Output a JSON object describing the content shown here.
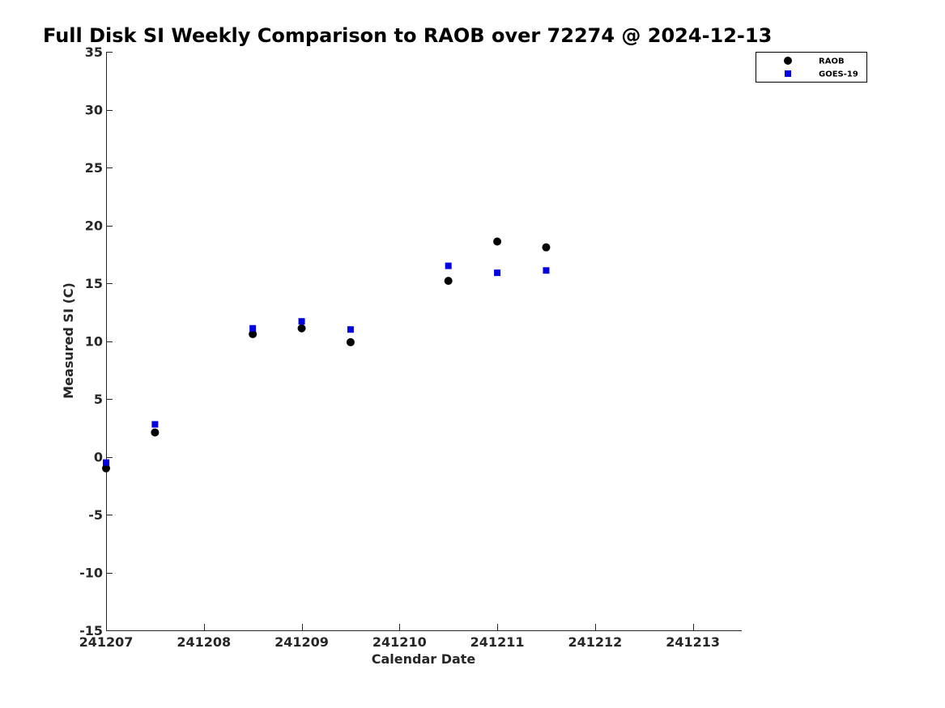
{
  "chart_data": {
    "type": "scatter",
    "title": "Full Disk SI Weekly Comparison to RAOB over 72274 @ 2024-12-13",
    "xlabel": "Calendar Date",
    "ylabel": "Measured SI (C)",
    "x_unit": "days",
    "x_tick_labels": [
      "241207",
      "241208",
      "241209",
      "241210",
      "241211",
      "241212",
      "241213"
    ],
    "x_tick_values": [
      0,
      1,
      2,
      3,
      4,
      5,
      6
    ],
    "xlim": [
      0,
      6.5
    ],
    "y_ticks": [
      -15,
      -10,
      -5,
      0,
      5,
      10,
      15,
      20,
      25,
      30,
      35
    ],
    "ylim": [
      -15,
      35
    ],
    "grid": false,
    "legend_position": "top-right",
    "series": [
      {
        "name": "RAOB",
        "marker": "circle",
        "color": "#000000",
        "x": [
          0,
          0.5,
          1.5,
          2.0,
          2.5,
          3.5,
          4.0,
          4.5
        ],
        "y": [
          -1.0,
          2.1,
          10.6,
          11.1,
          9.9,
          15.2,
          18.6,
          18.1
        ]
      },
      {
        "name": "GOES-19",
        "marker": "square",
        "color": "#0000e0",
        "x": [
          0,
          0.5,
          1.5,
          2.0,
          2.5,
          3.5,
          4.0,
          4.5
        ],
        "y": [
          -0.5,
          2.8,
          11.1,
          11.7,
          11.0,
          16.5,
          15.9,
          16.1
        ]
      }
    ]
  }
}
